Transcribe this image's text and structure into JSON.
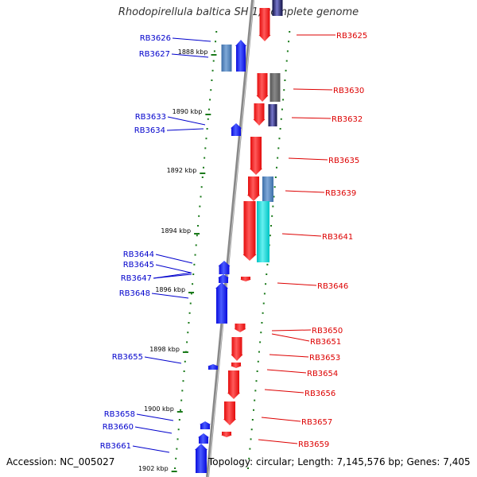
{
  "title": "Rhodopirellula baltica SH 1, complete genome",
  "footer": {
    "accession": "Accession: NC_005027",
    "info": "Topology: circular; Length: 7,145,576 bp; Genes: 7,405"
  },
  "colors": {
    "forward_label": "#0000cc",
    "reverse_label": "#dd0000",
    "tick": "#1a7a1a",
    "backbone": "#888888"
  },
  "scale_labels": [
    "1888 kbp",
    "1890 kbp",
    "1892 kbp",
    "1894 kbp",
    "1896 kbp",
    "1898 kbp",
    "1900 kbp",
    "1902 kbp"
  ],
  "left_genes": [
    "RB3626",
    "RB3627",
    "RB3633",
    "RB3634",
    "RB3644",
    "RB3645",
    "RB3647",
    "RB3648",
    "RB3655",
    "RB3658",
    "RB3660",
    "RB3661"
  ],
  "right_genes": [
    "RB3625",
    "RB3630",
    "RB3632",
    "RB3635",
    "RB3639",
    "RB3641",
    "RB3646",
    "RB3650",
    "RB3651",
    "RB3653",
    "RB3654",
    "RB3656",
    "RB3657",
    "RB3659"
  ]
}
